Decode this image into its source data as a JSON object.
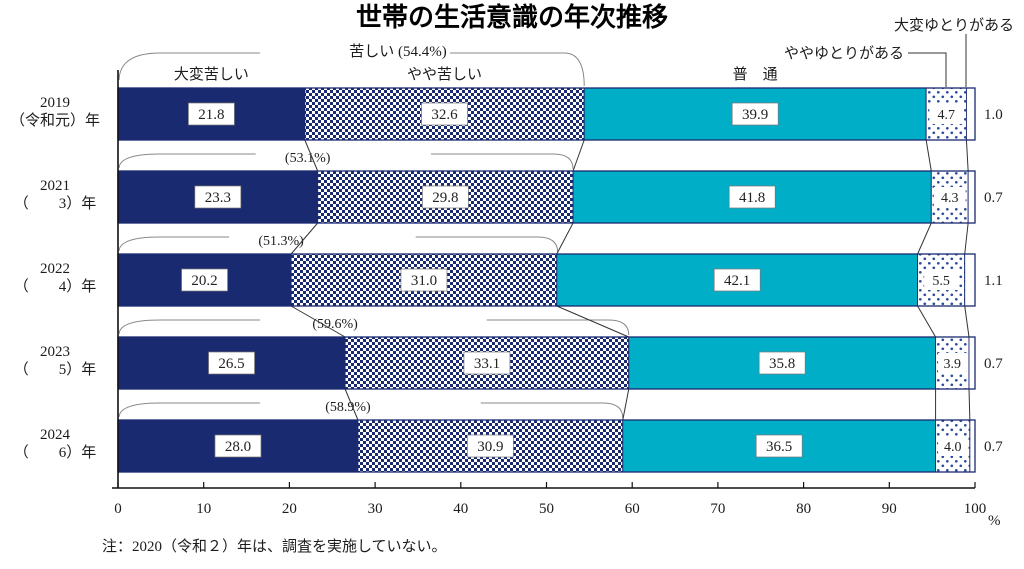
{
  "title": "世帯の生活意識の年次推移",
  "note": "注：2020（令和２）年は、調査を実施していない。",
  "axis": {
    "ticks": [
      0,
      10,
      20,
      30,
      40,
      50,
      60,
      70,
      80,
      90,
      100
    ],
    "unit": "%",
    "xlim": [
      0,
      100
    ]
  },
  "colors": {
    "navy": "#1a2a70",
    "cyan": "#00aec8",
    "dot_blue": "#2b4b9b",
    "axis_line": "#111111",
    "connector": "#333333",
    "brace": "#888888"
  },
  "chart_data": {
    "type": "bar",
    "orientation": "horizontal-stacked",
    "title": "世帯の生活意識の年次推移",
    "unit": "%",
    "xlim": [
      0,
      100
    ],
    "categories": [
      {
        "line1": "2019",
        "line2": "（令和元）年"
      },
      {
        "line1": "2021",
        "line2": "（　　3）年"
      },
      {
        "line1": "2022",
        "line2": "（　　4）年"
      },
      {
        "line1": "2023",
        "line2": "（　　5）年"
      },
      {
        "line1": "2024",
        "line2": "（　　6）年"
      }
    ],
    "series": [
      {
        "name": "大変苦しい",
        "style": "solid-navy",
        "values": [
          21.8,
          23.3,
          20.2,
          26.5,
          28.0
        ]
      },
      {
        "name": "やや苦しい",
        "style": "checkered",
        "values": [
          32.6,
          29.8,
          31.0,
          33.1,
          30.9
        ]
      },
      {
        "name": "普通",
        "display": "普　通",
        "style": "solid-cyan",
        "values": [
          39.9,
          41.8,
          42.1,
          35.8,
          36.5
        ]
      },
      {
        "name": "ややゆとりがある",
        "style": "dotted",
        "values": [
          4.7,
          4.3,
          5.5,
          3.9,
          4.0
        ]
      },
      {
        "name": "大変ゆとりがある",
        "style": "plain",
        "values": [
          1.0,
          0.7,
          1.1,
          0.7,
          0.7
        ]
      }
    ],
    "struggling_totals": {
      "values": [
        54.4,
        53.1,
        51.3,
        59.6,
        58.9
      ],
      "labels": [
        "苦しい (54.4%)",
        "(53.1%)",
        "(51.3%)",
        "(59.6%)",
        "(58.9%)"
      ]
    }
  }
}
